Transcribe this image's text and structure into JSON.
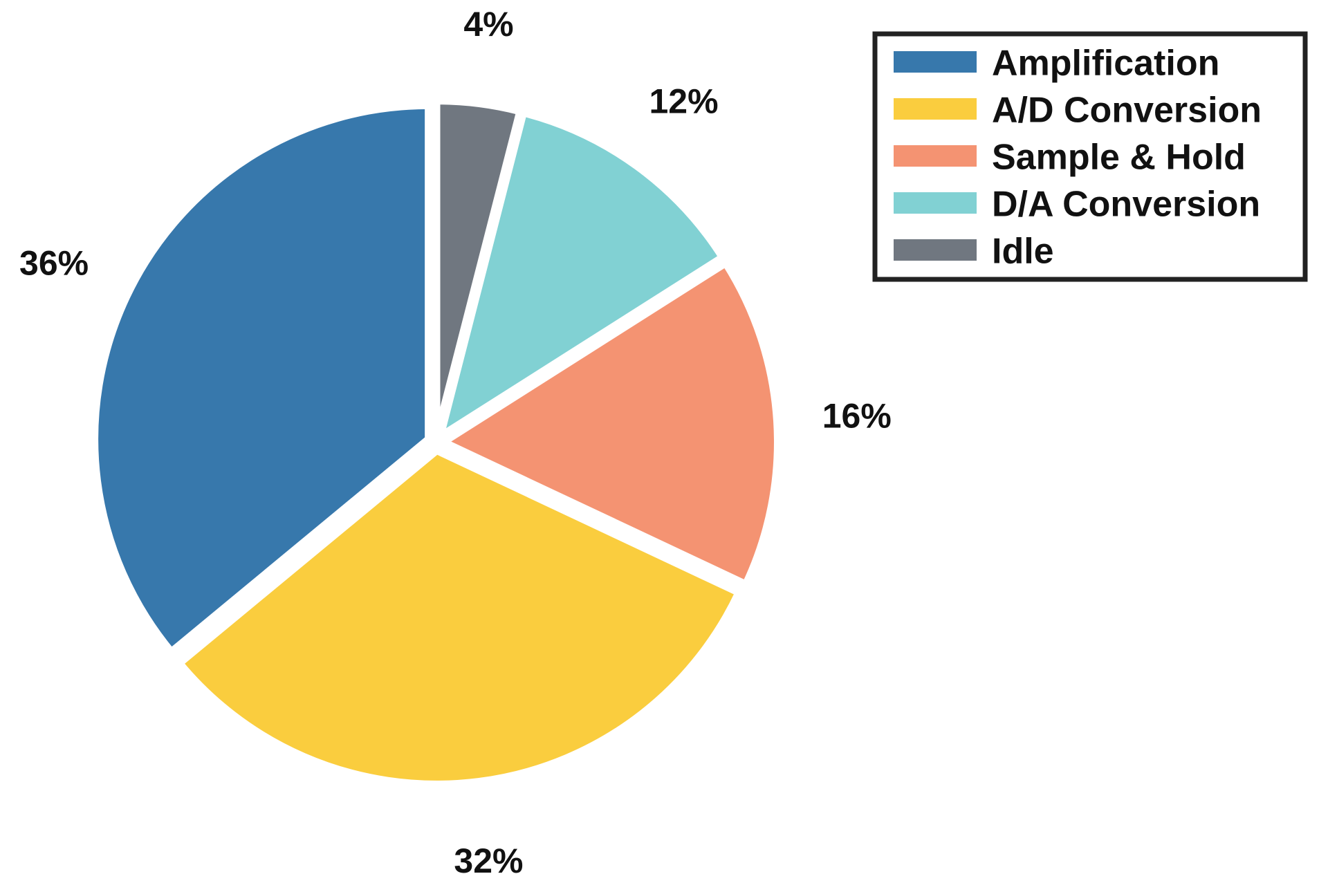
{
  "chart_data": {
    "type": "pie",
    "slices": [
      {
        "name": "Amplification",
        "value": 36,
        "label": "36%",
        "color": "#3778AC"
      },
      {
        "name": "A/D Conversion",
        "value": 32,
        "label": "32%",
        "color": "#FACD3E"
      },
      {
        "name": "Sample & Hold",
        "value": 16,
        "label": "16%",
        "color": "#F49372"
      },
      {
        "name": "D/A Conversion",
        "value": 12,
        "label": "12%",
        "color": "#81D1D3"
      },
      {
        "name": "Idle",
        "value": 4,
        "label": "4%",
        "color": "#707780"
      }
    ],
    "legend": {
      "placement": "top-right",
      "entries": [
        "Amplification",
        "A/D Conversion",
        "Sample & Hold",
        "D/A Conversion",
        "Idle"
      ]
    },
    "start_angle": "12 o'clock",
    "direction": "counterclockwise",
    "exploded": true
  }
}
